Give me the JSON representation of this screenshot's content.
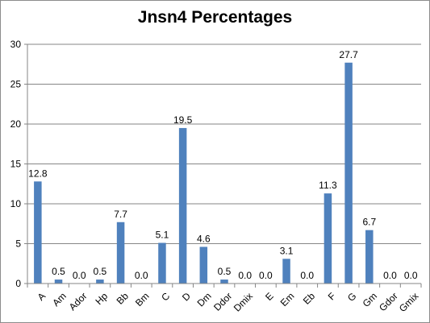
{
  "chart_data": {
    "type": "bar",
    "title": "Jnsn4 Percentages",
    "xlabel": "",
    "ylabel": "",
    "categories": [
      "A",
      "Am",
      "Ador",
      "Hp",
      "Bb",
      "Bm",
      "C",
      "D",
      "Dm",
      "Ddor",
      "Dmix",
      "E",
      "Em",
      "Eb",
      "F",
      "G",
      "Gm",
      "Gdor",
      "Gmix"
    ],
    "values": [
      12.8,
      0.5,
      0.0,
      0.5,
      7.7,
      0.0,
      5.1,
      19.5,
      4.6,
      0.5,
      0.0,
      0.0,
      3.1,
      0.0,
      11.3,
      27.7,
      6.7,
      0.0,
      0.0
    ],
    "data_labels": [
      "12.8",
      "0.5",
      "0.0",
      "0.5",
      "7.7",
      "0.0",
      "5.1",
      "19.5",
      "4.6",
      "0.5",
      "0.0",
      "0.0",
      "3.1",
      "0.0",
      "11.3",
      "27.7",
      "6.7",
      "0.0",
      "0.0"
    ],
    "ylim": [
      0,
      30
    ],
    "yticks": [
      0,
      5,
      10,
      15,
      20,
      25,
      30
    ],
    "grid": true,
    "legend": "none",
    "bar_color": "#4f81bd",
    "grid_color": "#868686"
  }
}
